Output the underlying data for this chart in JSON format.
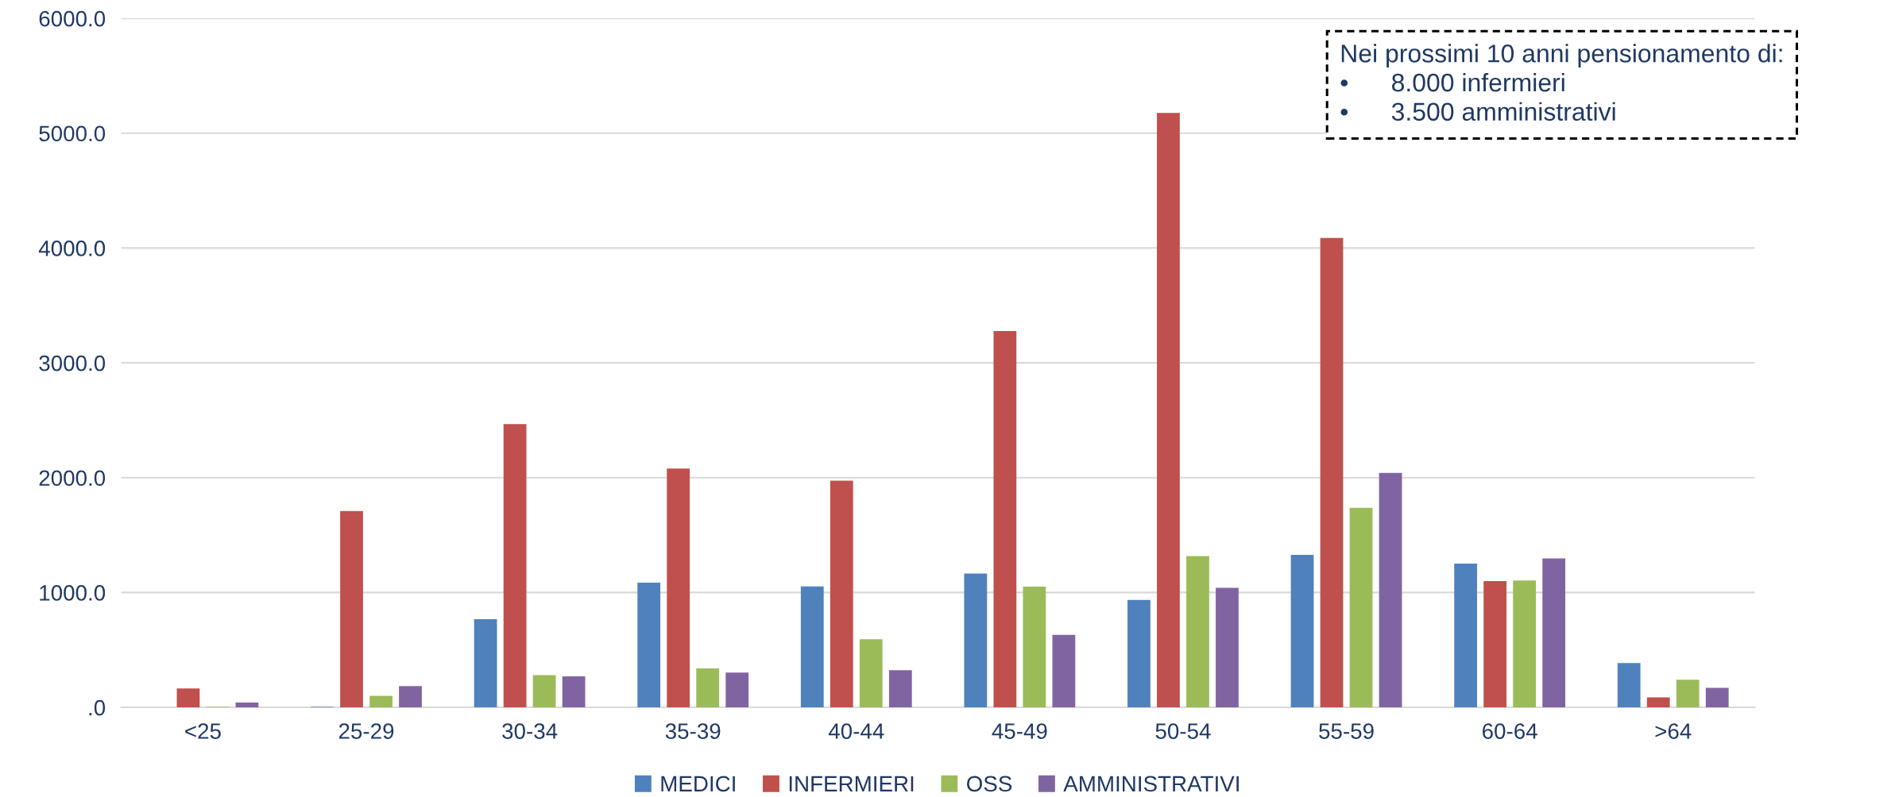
{
  "chart_data": {
    "type": "bar",
    "categories": [
      "<25",
      "25-29",
      "30-34",
      "35-39",
      "40-44",
      "45-49",
      "50-54",
      "55-59",
      "60-64",
      ">64"
    ],
    "series": [
      {
        "name": "MEDICI",
        "color": "#4f81bd",
        "values": [
          null,
          5,
          767,
          1085,
          1053,
          1165,
          936,
          1328,
          1252,
          386
        ]
      },
      {
        "name": "INFERMIERI",
        "color": "#c0504d",
        "values": [
          164,
          1709,
          2466,
          2079,
          1974,
          3277,
          5177,
          4088,
          1100,
          87
        ]
      },
      {
        "name": "OSS",
        "color": "#9bbb59",
        "values": [
          5,
          100,
          280,
          339,
          593,
          1051,
          1317,
          1737,
          1105,
          240
        ]
      },
      {
        "name": "AMMINISTRATIVI",
        "color": "#8064a2",
        "values": [
          42,
          185,
          270,
          302,
          323,
          631,
          1040,
          2041,
          1296,
          169
        ]
      }
    ],
    "ylim": [
      0,
      6000
    ],
    "yticks": [
      {
        "value": 0,
        "label": ".0"
      },
      {
        "value": 1000,
        "label": "1000.0"
      },
      {
        "value": 2000,
        "label": "2000.0"
      },
      {
        "value": 3000,
        "label": "3000.0"
      },
      {
        "value": 4000,
        "label": "4000.0"
      },
      {
        "value": 5000,
        "label": "5000.0"
      },
      {
        "value": 6000,
        "label": "6000.0"
      }
    ],
    "grid": "y",
    "legend": "bottom",
    "annotations": [
      "Nei prossimi 10 anni pensionamento di:\n•      8.000 infermieri\n•      3.500 amministrativi"
    ]
  }
}
